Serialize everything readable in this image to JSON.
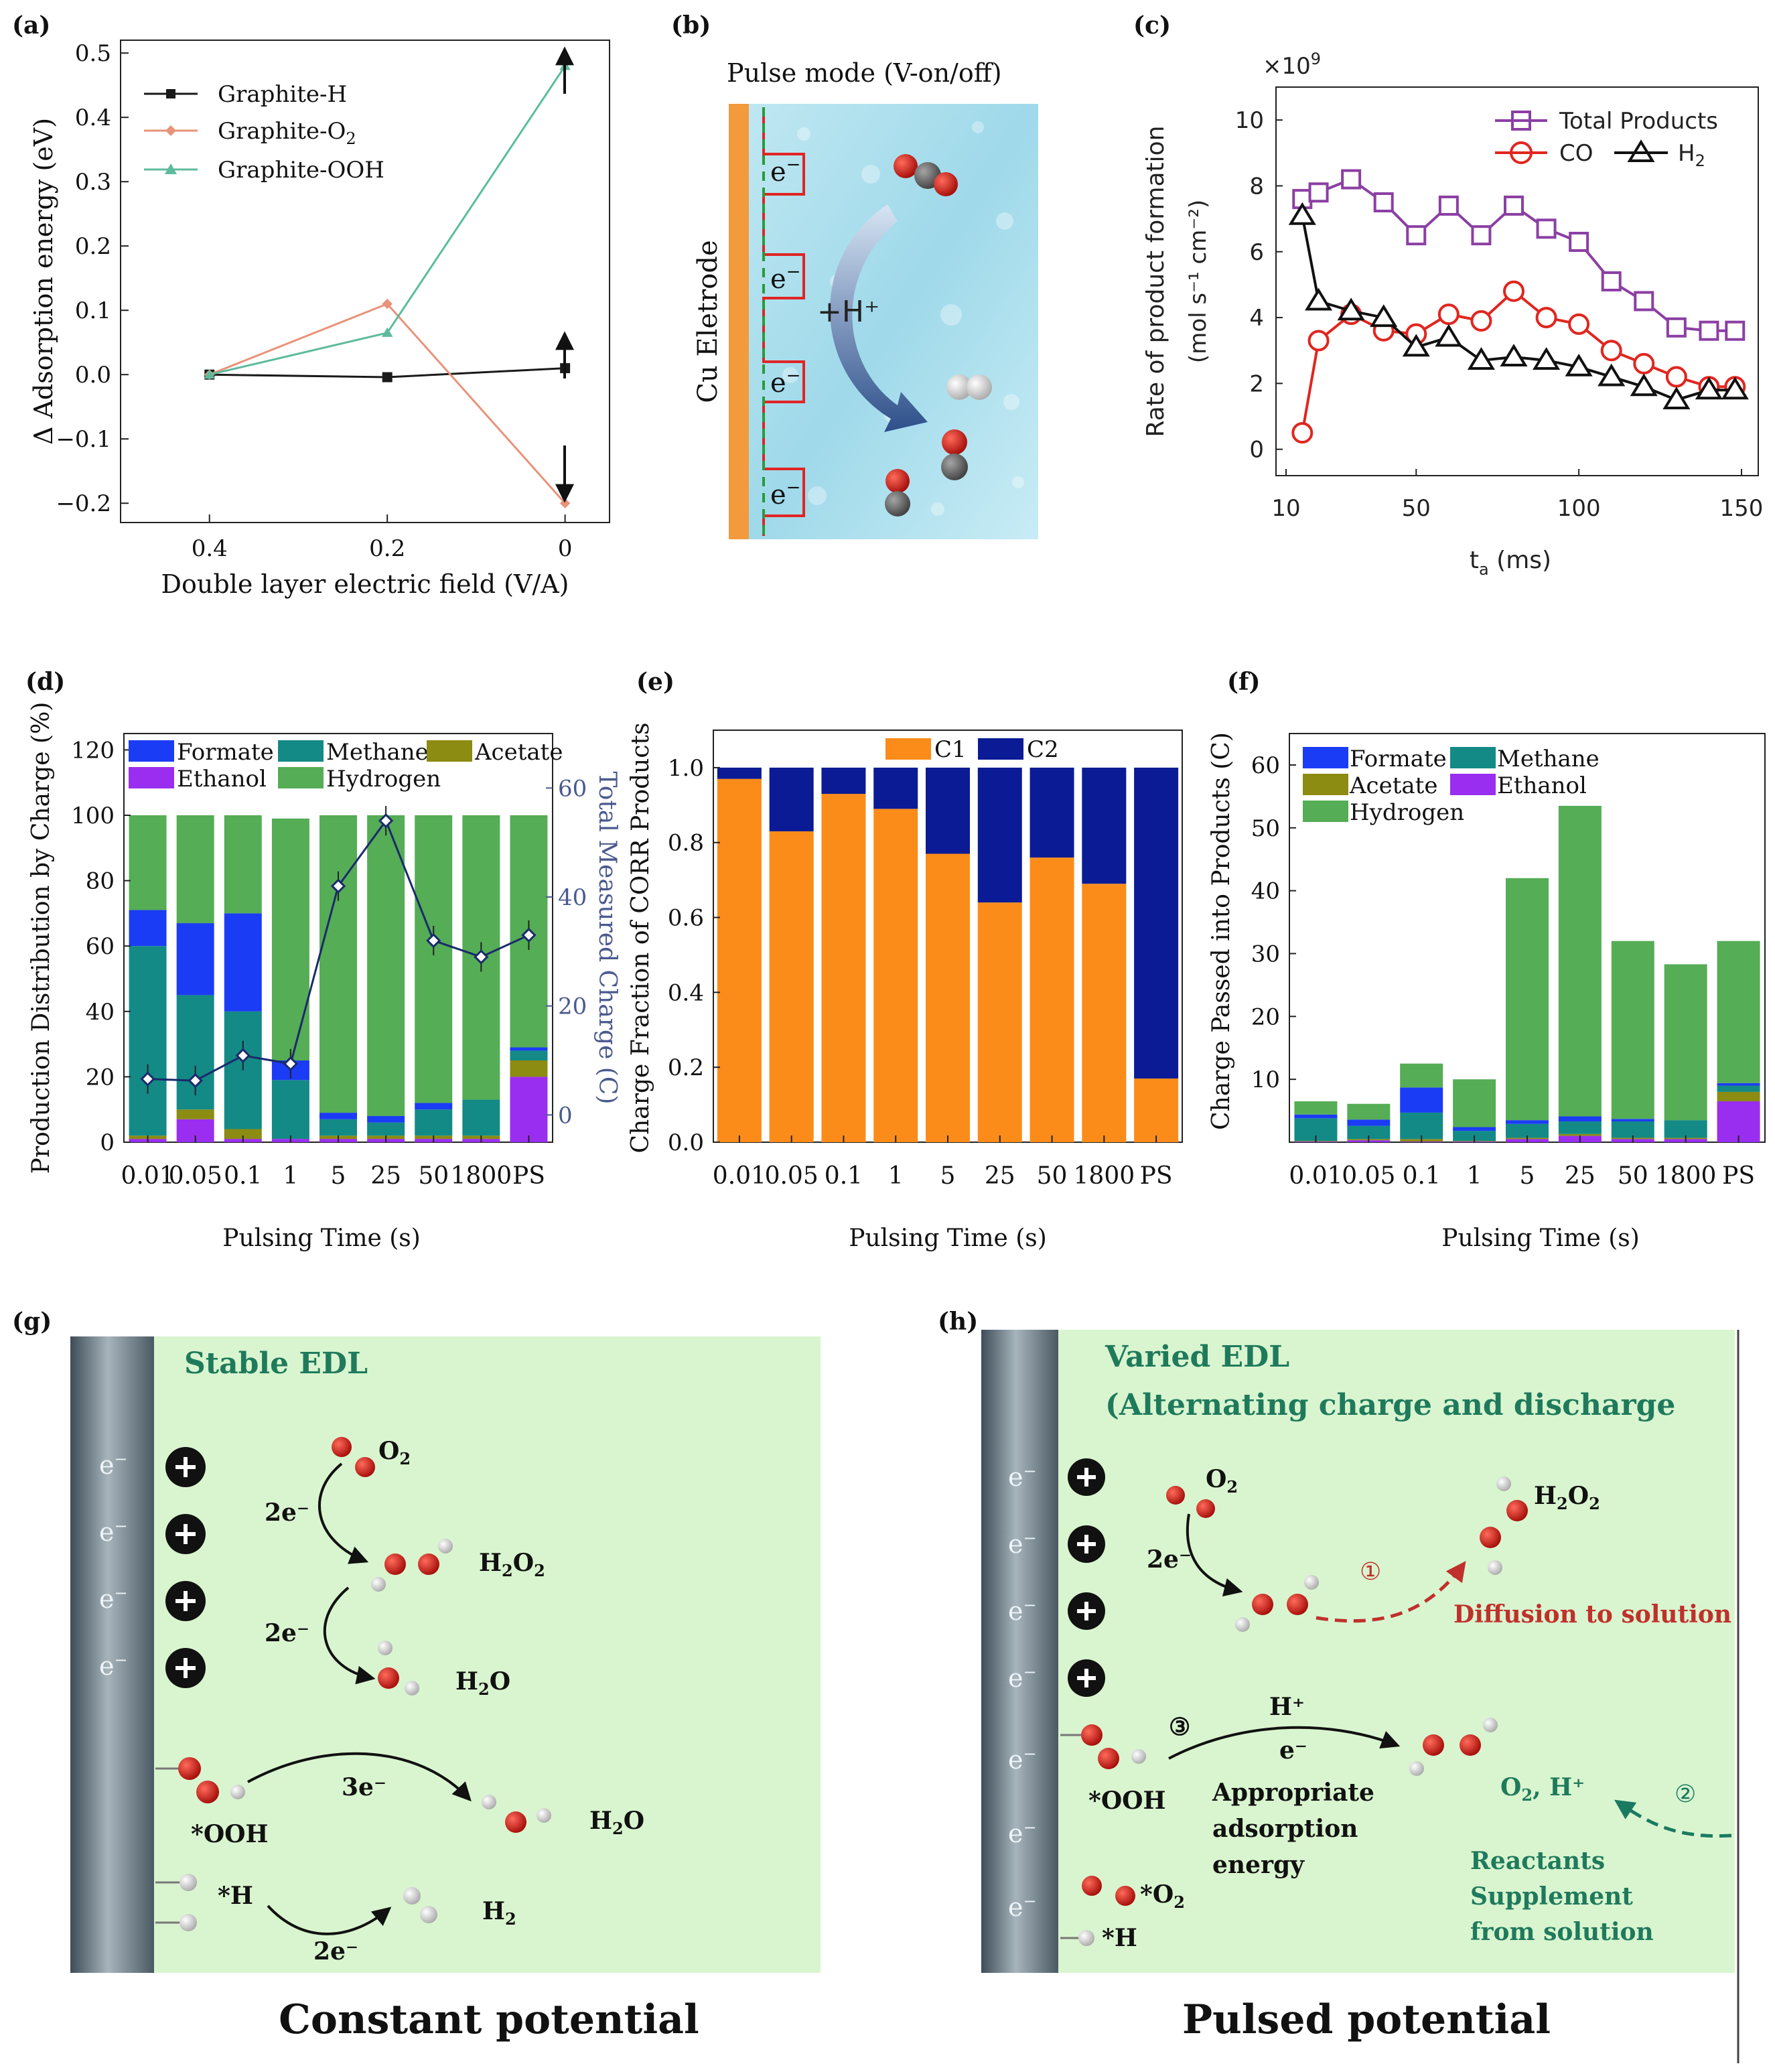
{
  "panels": {
    "a": "(a)",
    "b": "(b)",
    "c": "(c)",
    "d": "(d)",
    "e": "(e)",
    "f": "(f)",
    "g": "(g)",
    "h": "(h)"
  },
  "chart_data": [
    {
      "id": "a",
      "type": "line",
      "xlabel": "Double layer electric field (V/A)",
      "ylabel": "Δ Adsorption energy (eV)",
      "xlim": [
        0.5,
        -0.05
      ],
      "ylim": [
        -0.23,
        0.52
      ],
      "xticks": [
        0.4,
        0.2,
        0
      ],
      "yticks": [
        -0.2,
        -0.1,
        0.0,
        0.1,
        0.2,
        0.3,
        0.4,
        0.5
      ],
      "ytick_labels": [
        "−0.2",
        "−0.1",
        "0.0",
        "0.1",
        "0.2",
        "0.3",
        "0.4",
        "0.5"
      ],
      "series": [
        {
          "name": "Graphite-H",
          "color": "#1a1a1a",
          "marker": "square",
          "x": [
            0.4,
            0.2,
            0
          ],
          "values": [
            0.0,
            -0.004,
            0.01
          ]
        },
        {
          "name": "Graphite-O",
          "name_sub": "2",
          "color": "#e8937a",
          "marker": "diamond",
          "x": [
            0.4,
            0.2,
            0
          ],
          "values": [
            0.0,
            0.11,
            -0.2
          ]
        },
        {
          "name": "Graphite-OOH",
          "color": "#5dbb9d",
          "marker": "triangle",
          "x": [
            0.4,
            0.2,
            0
          ],
          "values": [
            0.0,
            0.065,
            0.48
          ]
        }
      ]
    },
    {
      "id": "c",
      "type": "line",
      "multiplier": "×10",
      "multiplier_exp": "9",
      "xlabel": "t",
      "xlabel_sub": "a",
      "xlabel_unit": " (ms)",
      "ylabel": "Rate of product formation",
      "ylabel_units": "(mol s⁻¹ cm⁻²)",
      "xlim": [
        10,
        150
      ],
      "ylim": [
        -0.8,
        11
      ],
      "xticks": [
        10,
        50,
        100,
        150
      ],
      "yticks": [
        0,
        2,
        4,
        6,
        8,
        10
      ],
      "x": [
        15,
        20,
        30,
        40,
        50,
        60,
        70,
        80,
        90,
        100,
        110,
        120,
        130,
        140,
        148
      ],
      "series": [
        {
          "name": "Total Products",
          "color": "#8b3fa3",
          "marker": "square",
          "values": [
            7.6,
            7.8,
            8.2,
            7.5,
            6.5,
            7.4,
            6.5,
            7.4,
            6.7,
            6.3,
            5.1,
            4.5,
            3.7,
            3.6,
            3.6
          ]
        },
        {
          "name": "CO",
          "color": "#e0261f",
          "marker": "circle",
          "values": [
            0.5,
            3.3,
            4.1,
            3.6,
            3.5,
            4.1,
            3.9,
            4.8,
            4.0,
            3.8,
            3.0,
            2.6,
            2.2,
            1.9,
            1.9
          ]
        },
        {
          "name": "H",
          "name_sub": "2",
          "color": "#111111",
          "marker": "triangle",
          "values": [
            7.1,
            4.5,
            4.2,
            4.0,
            3.1,
            3.4,
            2.7,
            2.8,
            2.7,
            2.5,
            2.2,
            1.9,
            1.5,
            1.8,
            1.8
          ]
        }
      ]
    },
    {
      "id": "d",
      "type": "bar",
      "stacked": true,
      "xlabel": "Pulsing Time (s)",
      "ylabel": "Production Distribution by Charge (%)",
      "y2label": "Total Measured Charge (C)",
      "ylim": [
        0,
        125
      ],
      "y2lim": [
        -5,
        70
      ],
      "yticks": [
        0,
        20,
        40,
        60,
        80,
        100,
        120
      ],
      "y2ticks": [
        0,
        20,
        40,
        60
      ],
      "categories": [
        "0.01",
        "0.05",
        "0.1",
        "1",
        "5",
        "25",
        "50",
        "1800",
        "PS"
      ],
      "series": [
        {
          "name": "Ethanol",
          "color": "#9a2ef0",
          "values": [
            1,
            7,
            1,
            1,
            1,
            1,
            1,
            1,
            20
          ]
        },
        {
          "name": "Acetate",
          "color": "#8c8b12",
          "values": [
            1,
            3,
            3,
            0,
            1,
            1,
            1,
            1,
            5
          ]
        },
        {
          "name": "Methane",
          "color": "#138a86",
          "values": [
            58,
            35,
            36,
            18,
            5,
            4,
            8,
            11,
            3
          ]
        },
        {
          "name": "Formate",
          "color": "#1b3cf5",
          "values": [
            11,
            22,
            30,
            6,
            2,
            2,
            2,
            0,
            1
          ]
        },
        {
          "name": "Hydrogen",
          "color": "#55ad55",
          "values": [
            29,
            33,
            30,
            74,
            91,
            92,
            88,
            87,
            71
          ]
        }
      ],
      "line": {
        "name": "Total Measured Charge",
        "color": "#1a2a6b",
        "values": [
          6.6,
          6.3,
          10.9,
          9.4,
          42,
          54,
          32,
          29,
          33
        ]
      }
    },
    {
      "id": "e",
      "type": "bar",
      "stacked": true,
      "xlabel": "Pulsing Time (s)",
      "ylabel": "Charge Fraction of CORR Products",
      "ylim": [
        0,
        1.1
      ],
      "yticks": [
        0.0,
        0.2,
        0.4,
        0.6,
        0.8,
        1.0
      ],
      "ytick_labels": [
        "0.0",
        "0.2",
        "0.4",
        "0.6",
        "0.8",
        "1.0"
      ],
      "categories": [
        "0.01",
        "0.05",
        "0.1",
        "1",
        "5",
        "25",
        "50",
        "1800",
        "PS"
      ],
      "series": [
        {
          "name": "C1",
          "color": "#fb8c1a",
          "values": [
            0.97,
            0.83,
            0.93,
            0.89,
            0.77,
            0.64,
            0.76,
            0.69,
            0.17
          ]
        },
        {
          "name": "C2",
          "color": "#0b1b95",
          "values": [
            0.03,
            0.17,
            0.07,
            0.11,
            0.23,
            0.36,
            0.24,
            0.31,
            0.83
          ]
        }
      ]
    },
    {
      "id": "f",
      "type": "bar",
      "stacked": true,
      "xlabel": "Pulsing Time (s)",
      "ylabel": "Charge Passed into Products (C)",
      "ylim": [
        0,
        65
      ],
      "yticks": [
        10,
        20,
        30,
        40,
        50,
        60
      ],
      "categories": [
        "0.01",
        "0.05",
        "0.1",
        "1",
        "5",
        "25",
        "50",
        "1800",
        "PS"
      ],
      "series": [
        {
          "name": "Ethanol",
          "color": "#9a2ef0",
          "values": [
            0.1,
            0.3,
            0.1,
            0.1,
            0.5,
            1.0,
            0.5,
            0.5,
            6.5
          ]
        },
        {
          "name": "Acetate",
          "color": "#8c8b12",
          "values": [
            0.1,
            0.2,
            0.4,
            0.1,
            0.2,
            0.3,
            0.2,
            0.2,
            1.5
          ]
        },
        {
          "name": "Methane",
          "color": "#138a86",
          "values": [
            3.6,
            2.1,
            4.2,
            1.6,
            2.2,
            2.0,
            2.6,
            2.8,
            1.0
          ]
        },
        {
          "name": "Formate",
          "color": "#1b3cf5",
          "values": [
            0.6,
            1.0,
            4.0,
            0.6,
            0.6,
            0.8,
            0.4,
            0.0,
            0.4
          ]
        },
        {
          "name": "Hydrogen",
          "color": "#55ad55",
          "values": [
            2.1,
            2.5,
            3.8,
            7.6,
            38.5,
            49.4,
            28.3,
            24.8,
            22.6
          ]
        }
      ]
    }
  ],
  "panel_b": {
    "title": "Pulse mode (V-on/off)",
    "electrode": "Cu Eletrode",
    "electron": "e",
    "electron_sup": "−",
    "proton": "+H⁺"
  },
  "panel_g": {
    "title": "Stable EDL",
    "footer": "Constant potential",
    "electron": "e",
    "electron_sup": "−",
    "o2": "O",
    "o2_sub": "2",
    "h2o2": "H",
    "h2o2_sub1": "2",
    "h2o2_mid": "O",
    "h2o2_sub2": "2",
    "h2o": "H",
    "h2o_sub": "2",
    "h2o_end": "O",
    "h2": "H",
    "h2_sub": "2",
    "two_e": "2e⁻",
    "three_e": "3e⁻",
    "ooh": "*OOH",
    "h_ads": "*H"
  },
  "panel_h": {
    "title1": "Varied EDL",
    "title2": "(Alternating charge and discharge",
    "footer": "Pulsed potential",
    "o2": "O",
    "o2_sub": "2",
    "h2o2": "H",
    "h2o2_sub1": "2",
    "h2o2_mid": "O",
    "h2o2_sub2": "2",
    "two_e": "2e⁻",
    "step1": "①",
    "step2": "②",
    "step3": "③",
    "diffusion": "Diffusion to solution",
    "hplus": "H⁺",
    "eminus": "e⁻",
    "appropriate1": "Appropriate",
    "appropriate2": "adsorption",
    "appropriate3": "energy",
    "ooh": "*OOH",
    "o2_ads": "*O",
    "o2_ads_sub": "2",
    "h_ads": "*H",
    "o2h": "O",
    "o2h_sub": "2",
    "o2h_end": ", H⁺",
    "reactants1": "Reactants",
    "reactants2": "Supplement",
    "reactants3": "from solution"
  }
}
